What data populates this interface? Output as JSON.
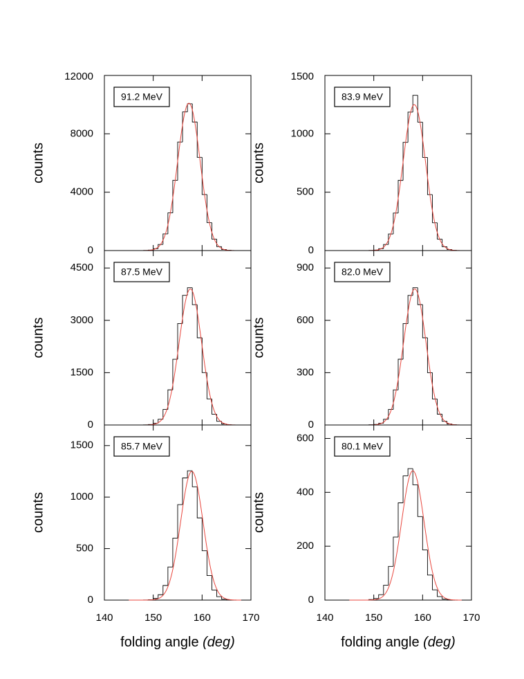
{
  "chart_data": [
    {
      "type": "histogram",
      "annotation": "91.2 MeV",
      "ylabel": "counts",
      "xlim": [
        140,
        170
      ],
      "xticks": [
        140,
        150,
        160,
        170
      ],
      "xtick_labels": false,
      "ylim": [
        0,
        12000
      ],
      "yticks": [
        0,
        4000,
        8000,
        12000
      ],
      "color": "#000000",
      "bins": [
        145,
        146,
        147,
        148,
        149,
        150,
        151,
        152,
        153,
        154,
        155,
        156,
        157,
        158,
        159,
        160,
        161,
        162,
        163,
        164,
        165,
        166,
        167,
        168
      ],
      "counts": [
        0,
        0,
        1,
        7,
        32,
        128,
        420,
        1140,
        2580,
        4810,
        7440,
        9500,
        10060,
        8810,
        6390,
        3840,
        1910,
        785,
        268,
        75,
        18,
        3,
        0
      ],
      "fit": {
        "color": "#e8453c",
        "amplitude": 10100,
        "mean": 157.3,
        "sigma": 2.3
      }
    },
    {
      "type": "histogram",
      "annotation": "83.9 MeV",
      "ylabel": "counts",
      "xlim": [
        140,
        170
      ],
      "xticks": [
        140,
        150,
        160,
        170
      ],
      "xtick_labels": false,
      "ylim": [
        0,
        1500
      ],
      "yticks": [
        0,
        500,
        1000,
        1500
      ],
      "color": "#000000",
      "bins": [
        145,
        146,
        147,
        148,
        149,
        150,
        151,
        152,
        153,
        154,
        155,
        156,
        157,
        158,
        159,
        160,
        161,
        162,
        163,
        164,
        165,
        166,
        167,
        168
      ],
      "counts": [
        0,
        0,
        0,
        0,
        1,
        4,
        16,
        52,
        142,
        321,
        601,
        927,
        1186,
        1330,
        1100,
        798,
        479,
        238,
        98,
        33,
        9,
        2,
        0
      ],
      "fit": {
        "color": "#e8453c",
        "amplitude": 1250,
        "mean": 158.3,
        "sigma": 2.3
      }
    },
    {
      "type": "histogram",
      "annotation": "87.5 MeV",
      "ylabel": "counts",
      "xlim": [
        140,
        170
      ],
      "xticks": [
        140,
        150,
        160,
        170
      ],
      "xtick_labels": false,
      "ylim": [
        0,
        5000
      ],
      "yticks": [
        0,
        1500,
        3000,
        4500
      ],
      "color": "#000000",
      "bins": [
        145,
        146,
        147,
        148,
        149,
        150,
        151,
        152,
        153,
        154,
        155,
        156,
        157,
        158,
        159,
        160,
        161,
        162,
        163,
        164,
        165,
        166,
        167,
        168
      ],
      "counts": [
        0,
        0,
        0,
        3,
        13,
        50,
        164,
        446,
        1007,
        1884,
        2907,
        3717,
        3934,
        3448,
        2500,
        1501,
        747,
        308,
        105,
        30,
        7,
        1,
        0
      ],
      "fit": {
        "color": "#e8453c",
        "amplitude": 3900,
        "mean": 157.6,
        "sigma": 2.3
      }
    },
    {
      "type": "histogram",
      "annotation": "82.0 MeV",
      "ylabel": "counts",
      "xlim": [
        140,
        170
      ],
      "xticks": [
        140,
        150,
        160,
        170
      ],
      "xtick_labels": false,
      "ylim": [
        0,
        1000
      ],
      "yticks": [
        0,
        300,
        600,
        900
      ],
      "color": "#000000",
      "bins": [
        145,
        146,
        147,
        148,
        149,
        150,
        151,
        152,
        153,
        154,
        155,
        156,
        157,
        158,
        159,
        160,
        161,
        162,
        163,
        164,
        165,
        166,
        167,
        168
      ],
      "counts": [
        0,
        0,
        0,
        0,
        1,
        3,
        10,
        33,
        89,
        201,
        377,
        581,
        743,
        787,
        690,
        500,
        300,
        149,
        62,
        21,
        6,
        1,
        0
      ],
      "fit": {
        "color": "#e8453c",
        "amplitude": 780,
        "mean": 158.4,
        "sigma": 2.3
      }
    },
    {
      "type": "histogram",
      "annotation": "85.7 MeV",
      "ylabel": "counts",
      "xlabel": "folding angle",
      "xlabel_unit": "(deg)",
      "xlim": [
        140,
        170
      ],
      "xticks": [
        140,
        150,
        160,
        170
      ],
      "xtick_labels": true,
      "ylim": [
        0,
        1700
      ],
      "yticks": [
        0,
        500,
        1000,
        1500
      ],
      "color": "#000000",
      "bins": [
        145,
        146,
        147,
        148,
        149,
        150,
        151,
        152,
        153,
        154,
        155,
        156,
        157,
        158,
        159,
        160,
        161,
        162,
        163,
        164,
        165,
        166,
        167,
        168
      ],
      "counts": [
        0,
        0,
        0,
        1,
        4,
        16,
        52,
        142,
        321,
        601,
        927,
        1186,
        1255,
        1100,
        798,
        479,
        238,
        98,
        33,
        9,
        2,
        0,
        0
      ],
      "fit": {
        "color": "#e8453c",
        "amplitude": 1250,
        "mean": 157.9,
        "sigma": 2.3
      }
    },
    {
      "type": "histogram",
      "annotation": "80.1 MeV",
      "ylabel": "counts",
      "xlabel": "folding angle",
      "xlabel_unit": "(deg)",
      "xlim": [
        140,
        170
      ],
      "xticks": [
        140,
        150,
        160,
        170
      ],
      "xtick_labels": true,
      "ylim": [
        0,
        650
      ],
      "yticks": [
        0,
        200,
        400,
        600
      ],
      "color": "#000000",
      "bins": [
        145,
        146,
        147,
        148,
        149,
        150,
        151,
        152,
        153,
        154,
        155,
        156,
        157,
        158,
        159,
        160,
        161,
        162,
        163,
        164,
        165,
        166,
        167,
        168
      ],
      "counts": [
        0,
        0,
        0,
        0,
        2,
        6,
        20,
        55,
        125,
        234,
        361,
        461,
        488,
        428,
        310,
        186,
        93,
        38,
        13,
        4,
        1,
        0,
        0
      ],
      "fit": {
        "color": "#e8453c",
        "amplitude": 480,
        "mean": 158.0,
        "sigma": 2.3
      }
    }
  ]
}
